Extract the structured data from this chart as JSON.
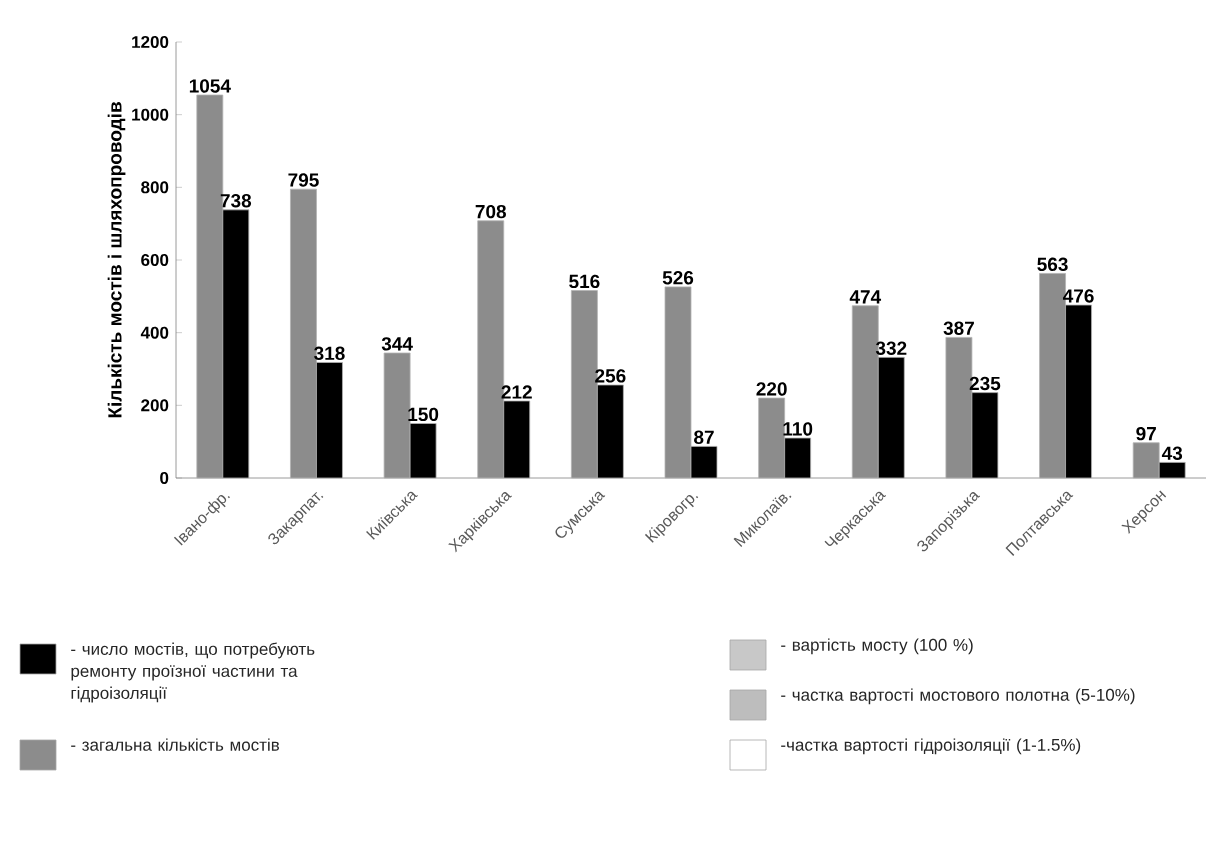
{
  "chart_data": {
    "type": "bar",
    "ylabel": "Кількість мостів і шляхопроводів",
    "categories": [
      "Івано-фр.",
      "Закарпат.",
      "Київська",
      "Харківська",
      "Сумська",
      "Кіровогр.",
      "Миколаїв.",
      "Черкаська",
      "Запорізька",
      "Полтавська",
      "Херсон"
    ],
    "series": [
      {
        "name": "- загальна кількість мостів",
        "color": "#8c8c8c",
        "values": [
          1054,
          795,
          344,
          708,
          516,
          526,
          220,
          474,
          387,
          563,
          97
        ]
      },
      {
        "name": "- число мостів, що потребують ремонту проїзної частини та гідроізоляції",
        "color": "#000000",
        "values": [
          738,
          318,
          150,
          212,
          256,
          87,
          110,
          332,
          235,
          476,
          43
        ]
      },
      {
        "name": "- вартість мосту (100 %)",
        "color": "#c8c8c8",
        "values": [
          null,
          null,
          null,
          null,
          null,
          null,
          null,
          null,
          null,
          null,
          null
        ]
      },
      {
        "name": "- частка вартості мостового полотна (5-10%)",
        "color": "#bdbdbd",
        "values": [
          null,
          null,
          null,
          null,
          null,
          null,
          null,
          null,
          null,
          null,
          null
        ]
      },
      {
        "name": "-частка вартості гідроізоляції (1-1.5%)",
        "color": "#ffffff",
        "values": [
          null,
          null,
          null,
          null,
          null,
          null,
          null,
          null,
          null,
          null,
          null
        ]
      }
    ],
    "ylim": [
      0,
      1200
    ],
    "yticks": [
      0,
      200,
      400,
      600,
      800,
      1000,
      1200
    ],
    "data_labels": true,
    "legend": "bottom"
  }
}
